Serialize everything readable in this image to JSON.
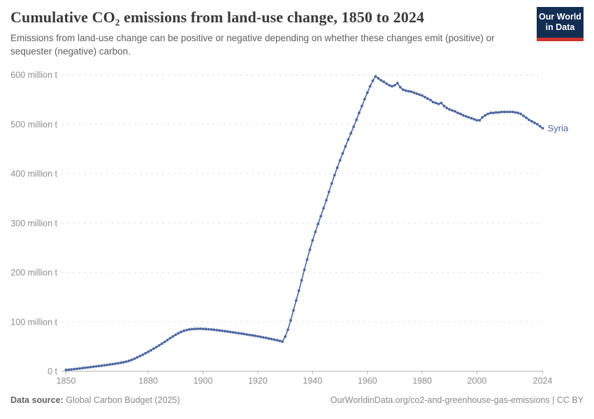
{
  "header": {
    "title": "Cumulative CO₂ emissions from land-use change, 1850 to 2024",
    "subtitle": "Emissions from land-use change can be positive or negative depending on whether these changes emit (positive) or sequester (negative) carbon.",
    "logo": {
      "line1": "Our World",
      "line2": "in Data",
      "bg_color": "#132e52",
      "stripe_color": "#cf352e"
    }
  },
  "chart_data": {
    "type": "line",
    "title": "Cumulative CO₂ emissions from land-use change, 1850 to 2024",
    "xlabel": "",
    "ylabel": "",
    "grid": "horizontal-dashed",
    "xlim": [
      1848,
      2026
    ],
    "ylim": [
      0,
      620
    ],
    "x_ticks": [
      1850,
      1880,
      1900,
      1920,
      1940,
      1960,
      1980,
      2000,
      2024
    ],
    "y_ticks": [
      {
        "value": 0,
        "label": "0 t"
      },
      {
        "value": 100,
        "label": "100 million t"
      },
      {
        "value": 200,
        "label": "200 million t"
      },
      {
        "value": 300,
        "label": "300 million t"
      },
      {
        "value": 400,
        "label": "400 million t"
      },
      {
        "value": 500,
        "label": "500 million t"
      },
      {
        "value": 600,
        "label": "600 million t"
      }
    ],
    "year_start": 1850,
    "year_end": 2024,
    "unit": "million t",
    "series": [
      {
        "name": "Syria",
        "color": "#4a66a0",
        "values": [
          2.5,
          3,
          3.6,
          4.2,
          4.8,
          5.5,
          6.2,
          6.9,
          7.6,
          8.3,
          9,
          9.7,
          10.4,
          11.1,
          11.9,
          12.7,
          13.5,
          14.3,
          15.2,
          16.1,
          17,
          18,
          19.3,
          21,
          23,
          25.3,
          27.8,
          30.5,
          33.3,
          36.2,
          39.2,
          42.3,
          45.5,
          48.8,
          52.2,
          55.7,
          59.3,
          63,
          66.7,
          70.3,
          73.7,
          76.8,
          79.5,
          81.7,
          83.3,
          84.4,
          85.1,
          85.5,
          85.7,
          85.8,
          85.6,
          85.3,
          84.9,
          84.4,
          83.8,
          83.2,
          82.5,
          81.8,
          81,
          80.2,
          79.4,
          78.6,
          77.8,
          77,
          76.1,
          75.2,
          74.3,
          73.4,
          72.5,
          71.5,
          70.5,
          69.5,
          68.4,
          67.3,
          66.2,
          65,
          63.8,
          62.6,
          61.3,
          60,
          70,
          84,
          103,
          123,
          143,
          163,
          184,
          205,
          226,
          246,
          265,
          282,
          298,
          314,
          330,
          346,
          363,
          380,
          397,
          412,
          427,
          441,
          455,
          469,
          482,
          495,
          509,
          523,
          537,
          551,
          564,
          577,
          588,
          597,
          593,
          589,
          586,
          582,
          579,
          577,
          579,
          583,
          575,
          570,
          568,
          567,
          566,
          564,
          562,
          560,
          558,
          555,
          552,
          549,
          545,
          543,
          541,
          543,
          537,
          533,
          530,
          528,
          526,
          523,
          521,
          518,
          516,
          514,
          512,
          510,
          508,
          508,
          514,
          518,
          521,
          523,
          523,
          524,
          524,
          525,
          525,
          525,
          525,
          525,
          524,
          523,
          521,
          517,
          513,
          509,
          506,
          503,
          500,
          496,
          492
        ]
      }
    ]
  },
  "footer": {
    "source_label": "Data source:",
    "source_value": "Global Carbon Budget (2025)",
    "credit": "OurWorldinData.org/co2-and-greenhouse-gas-emissions | CC BY"
  }
}
